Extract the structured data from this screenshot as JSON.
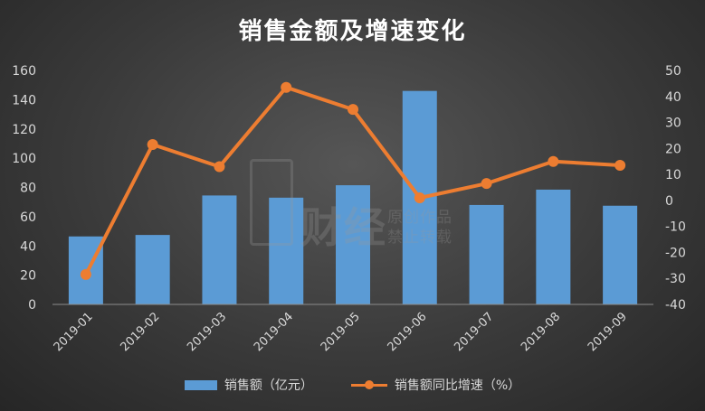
{
  "chart_data": {
    "type": "bar+line",
    "title": "销售金额及增速变化",
    "categories": [
      "2019-01",
      "2019-02",
      "2019-03",
      "2019-04",
      "2019-05",
      "2019-06",
      "2019-07",
      "2019-08",
      "2019-09"
    ],
    "series": [
      {
        "name": "销售额（亿元）",
        "type": "bar",
        "axis": "left",
        "color": "#5b9bd5",
        "values": [
          46.5,
          47.5,
          74.5,
          73,
          81.5,
          146,
          68,
          78.5,
          67.5
        ]
      },
      {
        "name": "销售额同比增速（%）",
        "type": "line",
        "axis": "right",
        "color": "#ed7d31",
        "values": [
          -28.5,
          21.5,
          13,
          43.5,
          35,
          1,
          6.5,
          15,
          13.5
        ]
      }
    ],
    "ylim_left": [
      0,
      160
    ],
    "yticks_left": [
      0,
      20,
      40,
      60,
      80,
      100,
      120,
      140,
      160
    ],
    "ylim_right": [
      -40,
      50
    ],
    "yticks_right": [
      -40,
      -30,
      -20,
      -10,
      0,
      10,
      20,
      30,
      40,
      50
    ],
    "grid": false,
    "legend_position": "bottom"
  },
  "watermark": {
    "big": "财经",
    "line1": "原创作品",
    "line2": "禁止转载"
  }
}
